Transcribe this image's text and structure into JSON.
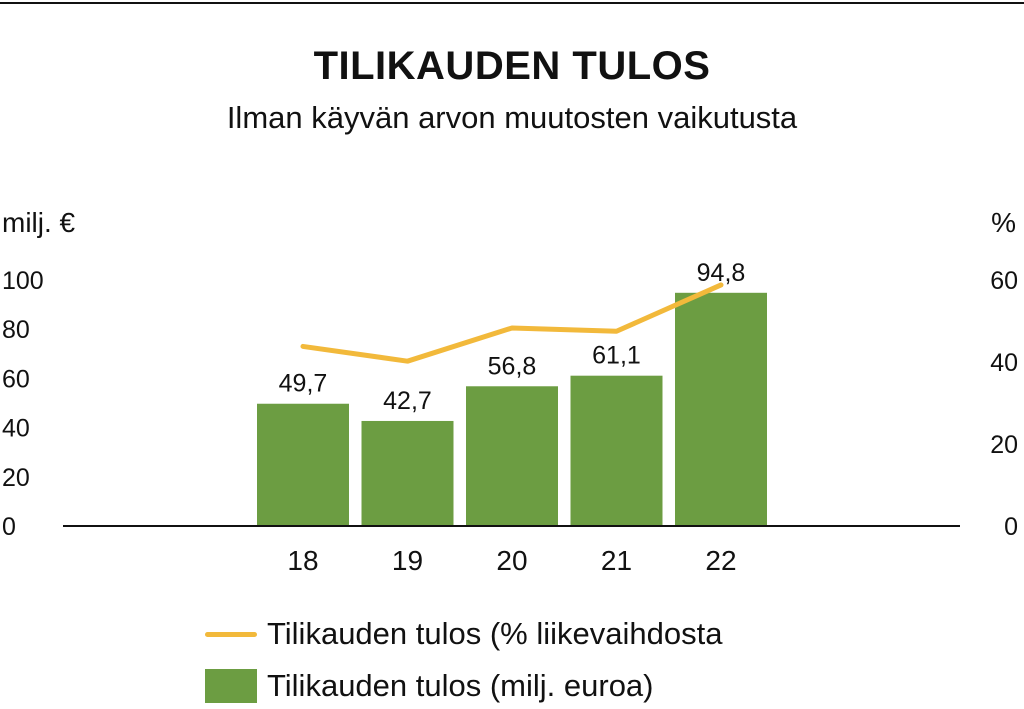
{
  "chart_data": {
    "type": "bar",
    "title": "TILIKAUDEN TULOS",
    "subtitle": "Ilman käyvän arvon muutosten vaikutusta",
    "categories": [
      "18",
      "19",
      "20",
      "21",
      "22"
    ],
    "series": [
      {
        "name": "Tilikauden tulos (milj. euroa)",
        "type": "bar",
        "axis": "left",
        "color": "#6c9d42",
        "values": [
          49.7,
          42.7,
          56.8,
          61.1,
          94.8
        ],
        "labels": [
          "49,7",
          "42,7",
          "56,8",
          "61,1",
          "94,8"
        ]
      },
      {
        "name": "Tilikauden tulos (% liikevaihdosta",
        "type": "line",
        "axis": "right",
        "color": "#f2b93b",
        "values": [
          43.8,
          40.2,
          48.3,
          47.5,
          58.8
        ]
      }
    ],
    "y_left": {
      "label": "milj. €",
      "ylim": [
        0,
        100
      ],
      "ticks": [
        "0",
        "20",
        "40",
        "60",
        "80",
        "100"
      ]
    },
    "y_right": {
      "label": "%",
      "ylim": [
        0,
        60
      ],
      "ticks": [
        "0",
        "20",
        "40",
        "60"
      ]
    },
    "grid": false,
    "legend_position": "bottom"
  }
}
